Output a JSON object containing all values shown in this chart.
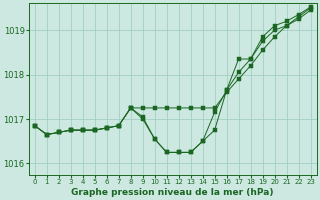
{
  "xlabel": "Graphe pression niveau de la mer (hPa)",
  "bg_color": "#cce8e0",
  "grid_color": "#99ccbb",
  "line_color": "#1a6622",
  "xlim": [
    -0.5,
    23.5
  ],
  "ylim": [
    1015.75,
    1019.6
  ],
  "yticks": [
    1016,
    1017,
    1018,
    1019
  ],
  "xticks": [
    0,
    1,
    2,
    3,
    4,
    5,
    6,
    7,
    8,
    9,
    10,
    11,
    12,
    13,
    14,
    15,
    16,
    17,
    18,
    19,
    20,
    21,
    22,
    23
  ],
  "line1": [
    1016.85,
    1016.65,
    1016.7,
    1016.75,
    1016.75,
    1016.75,
    1016.8,
    1016.85,
    1017.25,
    1017.25,
    1017.25,
    1017.25,
    1017.25,
    1017.25,
    1017.25,
    1017.25,
    1017.6,
    1017.9,
    1018.2,
    1018.55,
    1018.85,
    1019.1,
    1019.3,
    1019.5
  ],
  "line2": [
    1016.85,
    1016.65,
    1016.7,
    1016.75,
    1016.75,
    1016.75,
    1016.8,
    1016.85,
    1017.25,
    1017.05,
    1016.55,
    1016.25,
    1016.25,
    1016.25,
    1016.5,
    1016.75,
    1017.65,
    1018.05,
    1018.35,
    1018.75,
    1019.0,
    1019.1,
    1019.25,
    1019.45
  ],
  "line3": [
    1016.85,
    1016.65,
    1016.7,
    1016.75,
    1016.75,
    1016.75,
    1016.8,
    1016.85,
    1017.25,
    1017.0,
    1016.55,
    1016.25,
    1016.25,
    1016.25,
    1016.5,
    1017.15,
    1017.65,
    1018.35,
    1018.35,
    1018.85,
    1019.1,
    1019.2,
    1019.35,
    1019.52
  ]
}
